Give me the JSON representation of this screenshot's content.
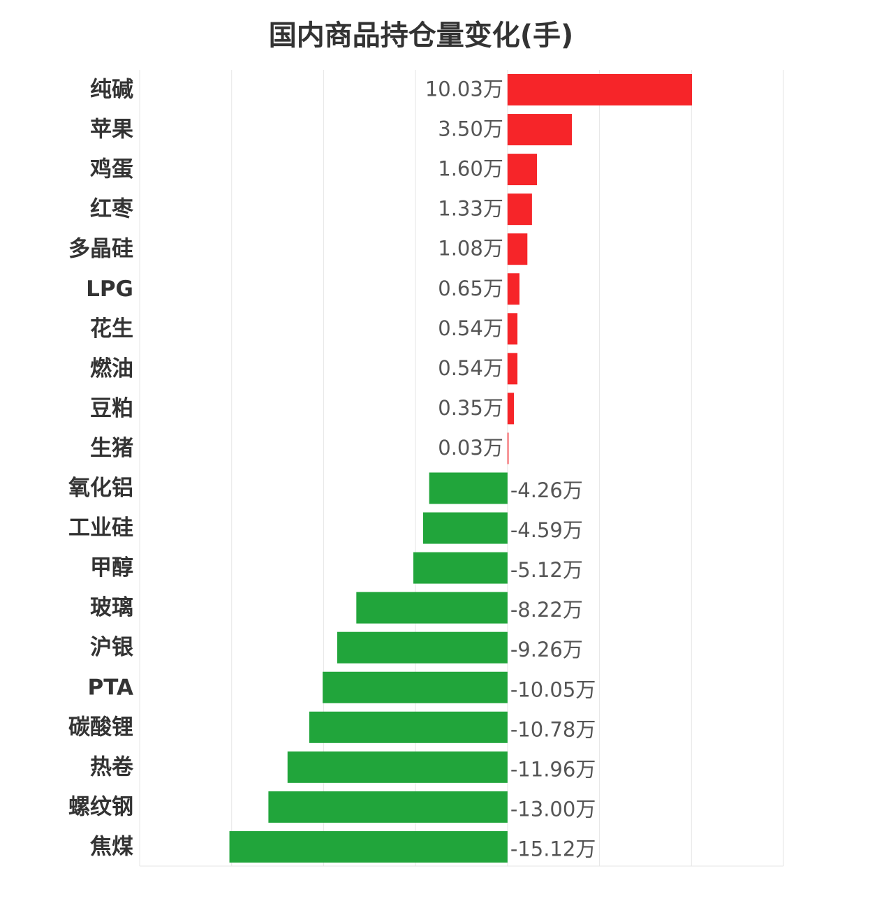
{
  "chart_data": {
    "type": "bar",
    "orientation": "horizontal",
    "title": "国内商品持仓量变化(手)",
    "unit": "万",
    "categories": [
      "纯碱",
      "苹果",
      "鸡蛋",
      "红枣",
      "多晶硅",
      "LPG",
      "花生",
      "燃油",
      "豆粕",
      "生猪",
      "氧化铝",
      "工业硅",
      "甲醇",
      "玻璃",
      "沪银",
      "PTA",
      "碳酸锂",
      "热卷",
      "螺纹钢",
      "焦煤"
    ],
    "values": [
      10.03,
      3.5,
      1.6,
      1.33,
      1.08,
      0.65,
      0.54,
      0.54,
      0.35,
      0.03,
      -4.26,
      -4.59,
      -5.12,
      -8.22,
      -9.26,
      -10.05,
      -10.78,
      -11.96,
      -13.0,
      -15.12
    ],
    "value_labels": [
      "10.03万",
      "3.50万",
      "1.60万",
      "1.33万",
      "1.08万",
      "0.65万",
      "0.54万",
      "0.54万",
      "0.35万",
      "0.03万",
      "-4.26万",
      "-4.59万",
      "-5.12万",
      "-8.22万",
      "-9.26万",
      "-10.05万",
      "-10.78万",
      "-11.96万",
      "-13.00万",
      "-15.12万"
    ],
    "xlim": [
      -20,
      15
    ],
    "grid": true,
    "colors": {
      "positive": "#f62529",
      "negative": "#21a53b",
      "grid": "#e6e6e6"
    }
  }
}
